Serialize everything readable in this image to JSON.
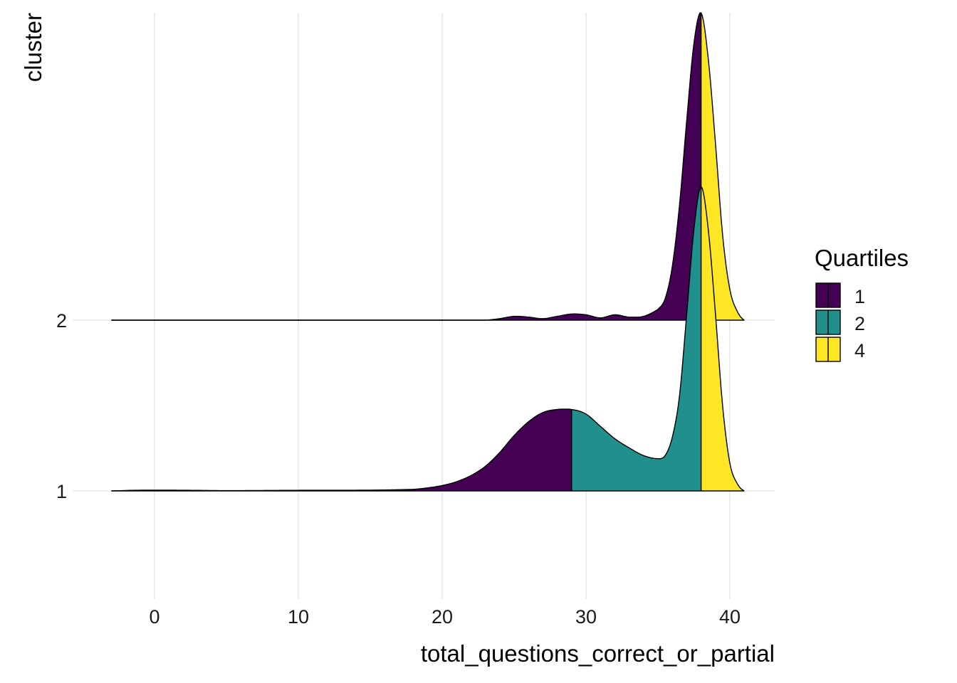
{
  "chart_data": {
    "type": "ridgeline-density",
    "xlabel": "total_questions_correct_or_partial",
    "ylabel": "cluster",
    "xlim": [
      -6,
      43
    ],
    "x_ticks": [
      0,
      10,
      20,
      30,
      40
    ],
    "x_tick_labels": [
      "0",
      "10",
      "20",
      "30",
      "40"
    ],
    "y_categories": [
      "1",
      "2"
    ],
    "grid": true,
    "legend": {
      "title": "Quartiles",
      "placement": "right",
      "entries": [
        {
          "label": "1",
          "color": "#440154"
        },
        {
          "label": "2",
          "color": "#21908C"
        },
        {
          "label": "4",
          "color": "#FDE725"
        }
      ]
    },
    "series": [
      {
        "name": "1",
        "quantile_cuts": [
          29,
          38
        ],
        "segment_colors": [
          "#440154",
          "#21908C",
          "#FDE725"
        ],
        "x": [
          -3,
          -1.5,
          0,
          2.5,
          5,
          10,
          15,
          18,
          19,
          20,
          21,
          22,
          23,
          24,
          25,
          26,
          27,
          28,
          29,
          30,
          31,
          32,
          33,
          34,
          35,
          35.5,
          36,
          36.5,
          37,
          37.5,
          38,
          38.5,
          39,
          39.5,
          40,
          40.5,
          41
        ],
        "density": [
          0,
          0.004,
          0.005,
          0.004,
          0.002,
          0.004,
          0.005,
          0.01,
          0.02,
          0.035,
          0.06,
          0.1,
          0.16,
          0.25,
          0.36,
          0.45,
          0.51,
          0.53,
          0.53,
          0.5,
          0.42,
          0.34,
          0.28,
          0.23,
          0.21,
          0.23,
          0.35,
          0.62,
          1.15,
          1.7,
          1.98,
          1.7,
          1.15,
          0.55,
          0.18,
          0.05,
          0.0
        ]
      },
      {
        "name": "2",
        "quantile_cuts": [
          38
        ],
        "segment_colors": [
          "#440154",
          "#FDE725"
        ],
        "x": [
          -3,
          10,
          23,
          24,
          25,
          26,
          27,
          28,
          29,
          30,
          31,
          32,
          33,
          34,
          35,
          35.5,
          36,
          36.5,
          37,
          37.5,
          38,
          38.5,
          39,
          39.5,
          40,
          40.5,
          41
        ],
        "density": [
          0,
          0,
          0,
          0.01,
          0.025,
          0.02,
          0.01,
          0.025,
          0.04,
          0.035,
          0.015,
          0.035,
          0.02,
          0.025,
          0.07,
          0.14,
          0.35,
          0.75,
          1.3,
          1.8,
          2.0,
          1.7,
          1.15,
          0.55,
          0.2,
          0.06,
          0.0
        ]
      }
    ]
  }
}
